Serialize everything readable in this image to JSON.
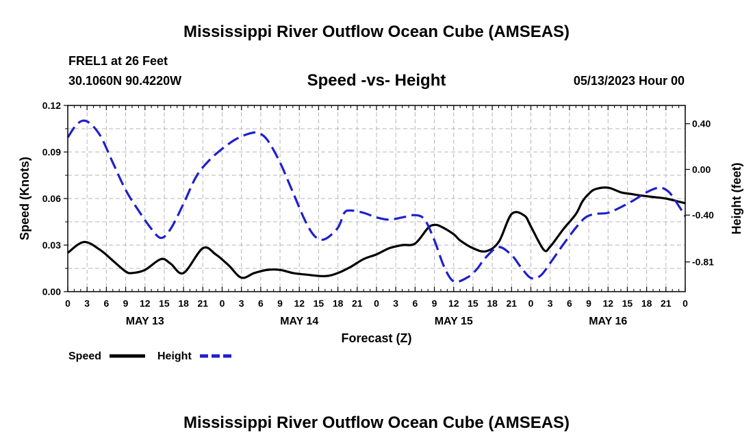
{
  "title": "Mississippi River Outflow Ocean Cube (AMSEAS)",
  "footer_title": "Mississippi River Outflow Ocean Cube (AMSEAS)",
  "station": "FREL1 at 26 Feet",
  "coords": "30.1060N  90.4220W",
  "date_label": "05/13/2023 Hour 00",
  "chart_data": {
    "type": "line",
    "title": "Speed -vs- Height",
    "xlabel": "Forecast (Z)",
    "ylabel": "Speed (Knots)",
    "y2label": "Height (feet)",
    "xlim": [
      0,
      96
    ],
    "ylim": [
      0,
      0.12
    ],
    "y2lim": [
      -1.07,
      0.56
    ],
    "x_tick_labels": [
      "0",
      "3",
      "6",
      "9",
      "12",
      "15",
      "18",
      "21",
      "0",
      "3",
      "6",
      "9",
      "12",
      "15",
      "18",
      "21",
      "0",
      "3",
      "6",
      "9",
      "12",
      "15",
      "18",
      "21",
      "0",
      "3",
      "6",
      "9",
      "12",
      "15",
      "18",
      "21",
      "0"
    ],
    "y_tick_labels": [
      "0.00",
      "0.03",
      "0.06",
      "0.09",
      "0.12"
    ],
    "y_tick_values": [
      0,
      0.03,
      0.06,
      0.09,
      0.12
    ],
    "y2_tick_labels": [
      "-0.81",
      "-0.40",
      "0.00",
      "0.40"
    ],
    "y2_tick_values": [
      -0.81,
      -0.4,
      0.0,
      0.4
    ],
    "day_labels": [
      {
        "label": "MAY 13",
        "x": 12
      },
      {
        "label": "MAY 14",
        "x": 36
      },
      {
        "label": "MAY 15",
        "x": 60
      },
      {
        "label": "MAY 16",
        "x": 84
      }
    ],
    "series": [
      {
        "name": "Speed",
        "color": "#000000",
        "style": "solid",
        "axis": "left",
        "x": [
          0,
          2.5,
          5,
          7,
          9,
          10,
          12,
          14.5,
          16,
          18,
          21,
          23,
          25,
          27,
          29,
          31,
          33,
          35,
          37,
          40,
          42,
          44,
          46,
          48,
          50,
          52,
          54,
          56,
          57,
          58,
          60,
          61,
          63,
          65,
          67,
          69,
          71,
          72,
          74,
          75,
          77,
          79,
          80,
          81,
          82,
          84,
          86,
          87.5,
          89,
          91,
          93,
          95,
          96
        ],
        "values": [
          0.025,
          0.032,
          0.027,
          0.02,
          0.013,
          0.012,
          0.014,
          0.021,
          0.018,
          0.012,
          0.028,
          0.024,
          0.017,
          0.009,
          0.012,
          0.014,
          0.014,
          0.012,
          0.011,
          0.01,
          0.012,
          0.016,
          0.021,
          0.024,
          0.028,
          0.03,
          0.031,
          0.041,
          0.043,
          0.042,
          0.037,
          0.033,
          0.028,
          0.026,
          0.032,
          0.05,
          0.049,
          0.042,
          0.027,
          0.029,
          0.04,
          0.05,
          0.058,
          0.063,
          0.066,
          0.067,
          0.064,
          0.063,
          0.062,
          0.061,
          0.06,
          0.058,
          0.057
        ]
      },
      {
        "name": "Height",
        "color": "#1f1fcc",
        "style": "dashed",
        "axis": "right",
        "x": [
          0,
          1.5,
          3,
          5,
          7,
          9,
          11,
          13,
          14.5,
          16,
          18,
          20,
          22,
          24,
          26,
          28,
          29.5,
          31,
          33,
          35,
          37,
          38.5,
          40,
          42,
          43,
          44,
          46,
          48,
          50,
          52,
          54,
          55.5,
          57,
          58.5,
          60,
          62,
          63.5,
          65,
          67,
          69,
          70.5,
          72,
          73.5,
          75,
          77,
          79,
          80.5,
          82,
          84,
          86,
          88,
          90,
          92,
          93.5,
          95,
          96
        ],
        "values": [
          0.28,
          0.4,
          0.42,
          0.3,
          0.06,
          -0.18,
          -0.36,
          -0.52,
          -0.6,
          -0.52,
          -0.3,
          -0.06,
          0.08,
          0.18,
          0.26,
          0.31,
          0.32,
          0.26,
          0.06,
          -0.2,
          -0.46,
          -0.59,
          -0.61,
          -0.51,
          -0.38,
          -0.36,
          -0.38,
          -0.42,
          -0.44,
          -0.42,
          -0.4,
          -0.44,
          -0.62,
          -0.85,
          -0.98,
          -0.95,
          -0.88,
          -0.77,
          -0.68,
          -0.75,
          -0.86,
          -0.95,
          -0.93,
          -0.82,
          -0.66,
          -0.51,
          -0.42,
          -0.39,
          -0.38,
          -0.33,
          -0.27,
          -0.2,
          -0.16,
          -0.2,
          -0.32,
          -0.41
        ]
      }
    ],
    "legend": [
      {
        "label": "Speed",
        "color": "#000000",
        "style": "solid"
      },
      {
        "label": "Height",
        "color": "#1f1fcc",
        "style": "dashed"
      }
    ]
  }
}
